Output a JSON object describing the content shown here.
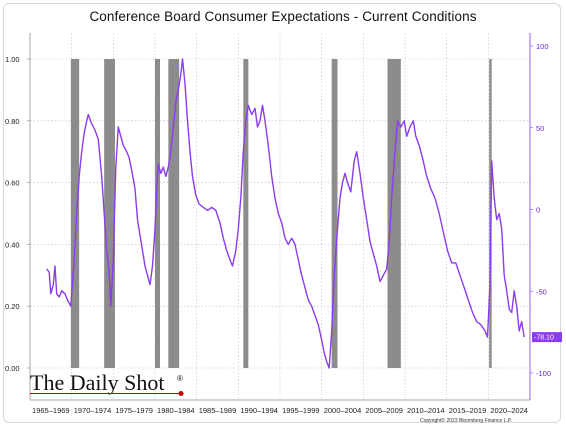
{
  "chart_data": {
    "type": "line",
    "title": "Conference Board Consumer Expectations - Current Conditions",
    "left_axis": {
      "ticks": [
        "0.00",
        "0.20",
        "0.40",
        "0.60",
        "0.80",
        "1.00"
      ],
      "values": [
        0,
        0.2,
        0.4,
        0.6,
        0.8,
        1.0
      ],
      "range": [
        0,
        1.0
      ]
    },
    "right_axis": {
      "ticks": [
        "100",
        "50",
        "0",
        "-50",
        "-100"
      ],
      "values": [
        100,
        50,
        0,
        -50,
        -100
      ],
      "range": [
        -100,
        100
      ]
    },
    "x_ticks": [
      "1965–1969",
      "1970–1974",
      "1975–1979",
      "1980–1984",
      "1985–1989",
      "1990–1994",
      "1995–1999",
      "2000–2004",
      "2005–2009",
      "2010–2014",
      "2015–2019",
      "2020–2024"
    ],
    "x_range": [
      1965,
      2025
    ],
    "last_value_label": "-78.10",
    "recessions": [
      [
        1969.9,
        1970.9
      ],
      [
        1973.9,
        1975.2
      ],
      [
        1980.0,
        1980.6
      ],
      [
        1981.6,
        1982.9
      ],
      [
        1990.6,
        1991.2
      ],
      [
        2001.2,
        2001.9
      ],
      [
        2007.9,
        2009.5
      ],
      [
        2020.1,
        2020.4
      ]
    ],
    "series": [
      {
        "color": "#8a3cf0",
        "points": [
          [
            1967.0,
            0.32
          ],
          [
            1967.3,
            0.31
          ],
          [
            1967.5,
            0.24
          ],
          [
            1967.8,
            0.27
          ],
          [
            1968.0,
            0.33
          ],
          [
            1968.2,
            0.24
          ],
          [
            1968.5,
            0.23
          ],
          [
            1968.8,
            0.25
          ],
          [
            1969.2,
            0.24
          ],
          [
            1969.5,
            0.22
          ],
          [
            1969.9,
            0.2
          ],
          [
            1970.3,
            0.35
          ],
          [
            1970.6,
            0.5
          ],
          [
            1970.9,
            0.62
          ],
          [
            1971.2,
            0.7
          ],
          [
            1971.5,
            0.76
          ],
          [
            1971.8,
            0.8
          ],
          [
            1972.0,
            0.82
          ],
          [
            1972.4,
            0.79
          ],
          [
            1972.8,
            0.77
          ],
          [
            1973.2,
            0.74
          ],
          [
            1973.6,
            0.62
          ],
          [
            1973.9,
            0.5
          ],
          [
            1974.2,
            0.38
          ],
          [
            1974.5,
            0.31
          ],
          [
            1974.7,
            0.2
          ],
          [
            1975.0,
            0.35
          ],
          [
            1975.3,
            0.65
          ],
          [
            1975.6,
            0.78
          ],
          [
            1975.9,
            0.75
          ],
          [
            1976.2,
            0.72
          ],
          [
            1976.6,
            0.7
          ],
          [
            1976.9,
            0.68
          ],
          [
            1977.2,
            0.64
          ],
          [
            1977.6,
            0.58
          ],
          [
            1977.9,
            0.48
          ],
          [
            1978.2,
            0.43
          ],
          [
            1978.5,
            0.38
          ],
          [
            1978.8,
            0.33
          ],
          [
            1979.1,
            0.3
          ],
          [
            1979.4,
            0.27
          ],
          [
            1979.7,
            0.33
          ],
          [
            1980.0,
            0.45
          ],
          [
            1980.2,
            0.58
          ],
          [
            1980.4,
            0.66
          ],
          [
            1980.7,
            0.63
          ],
          [
            1981.0,
            0.65
          ],
          [
            1981.3,
            0.62
          ],
          [
            1981.6,
            0.65
          ],
          [
            1981.9,
            0.7
          ],
          [
            1982.2,
            0.78
          ],
          [
            1982.5,
            0.86
          ],
          [
            1982.8,
            0.9
          ],
          [
            1983.1,
            0.95
          ],
          [
            1983.3,
            1.0
          ],
          [
            1983.6,
            0.92
          ],
          [
            1983.9,
            0.8
          ],
          [
            1984.2,
            0.7
          ],
          [
            1984.5,
            0.62
          ],
          [
            1984.9,
            0.56
          ],
          [
            1985.3,
            0.53
          ],
          [
            1985.8,
            0.52
          ],
          [
            1986.3,
            0.51
          ],
          [
            1986.8,
            0.52
          ],
          [
            1987.3,
            0.51
          ],
          [
            1987.8,
            0.47
          ],
          [
            1988.2,
            0.42
          ],
          [
            1988.6,
            0.38
          ],
          [
            1989.0,
            0.35
          ],
          [
            1989.3,
            0.33
          ],
          [
            1989.7,
            0.38
          ],
          [
            1990.0,
            0.45
          ],
          [
            1990.3,
            0.55
          ],
          [
            1990.6,
            0.7
          ],
          [
            1990.9,
            0.8
          ],
          [
            1991.2,
            0.85
          ],
          [
            1991.6,
            0.82
          ],
          [
            1992.0,
            0.84
          ],
          [
            1992.3,
            0.78
          ],
          [
            1992.6,
            0.8
          ],
          [
            1992.9,
            0.85
          ],
          [
            1993.2,
            0.8
          ],
          [
            1993.6,
            0.72
          ],
          [
            1994.0,
            0.62
          ],
          [
            1994.4,
            0.55
          ],
          [
            1994.8,
            0.5
          ],
          [
            1995.2,
            0.47
          ],
          [
            1995.6,
            0.42
          ],
          [
            1996.0,
            0.4
          ],
          [
            1996.4,
            0.42
          ],
          [
            1996.8,
            0.4
          ],
          [
            1997.2,
            0.35
          ],
          [
            1997.6,
            0.3
          ],
          [
            1998.0,
            0.26
          ],
          [
            1998.4,
            0.22
          ],
          [
            1998.8,
            0.2
          ],
          [
            1999.2,
            0.17
          ],
          [
            1999.6,
            0.14
          ],
          [
            2000.0,
            0.09
          ],
          [
            2000.3,
            0.05
          ],
          [
            2000.6,
            0.02
          ],
          [
            2000.9,
            0.0
          ],
          [
            2001.2,
            0.12
          ],
          [
            2001.5,
            0.3
          ],
          [
            2001.9,
            0.45
          ],
          [
            2002.2,
            0.55
          ],
          [
            2002.5,
            0.6
          ],
          [
            2002.8,
            0.63
          ],
          [
            2003.1,
            0.6
          ],
          [
            2003.5,
            0.57
          ],
          [
            2003.9,
            0.67
          ],
          [
            2004.2,
            0.7
          ],
          [
            2004.6,
            0.63
          ],
          [
            2005.0,
            0.55
          ],
          [
            2005.4,
            0.48
          ],
          [
            2005.8,
            0.41
          ],
          [
            2006.2,
            0.37
          ],
          [
            2006.6,
            0.33
          ],
          [
            2007.0,
            0.28
          ],
          [
            2007.4,
            0.3
          ],
          [
            2007.8,
            0.32
          ],
          [
            2008.1,
            0.41
          ],
          [
            2008.4,
            0.55
          ],
          [
            2008.8,
            0.7
          ],
          [
            2009.1,
            0.8
          ],
          [
            2009.5,
            0.78
          ],
          [
            2009.9,
            0.8
          ],
          [
            2010.2,
            0.75
          ],
          [
            2010.6,
            0.78
          ],
          [
            2011.0,
            0.8
          ],
          [
            2011.3,
            0.75
          ],
          [
            2011.7,
            0.72
          ],
          [
            2012.1,
            0.68
          ],
          [
            2012.6,
            0.62
          ],
          [
            2013.1,
            0.58
          ],
          [
            2013.6,
            0.55
          ],
          [
            2014.1,
            0.5
          ],
          [
            2014.6,
            0.44
          ],
          [
            2015.1,
            0.38
          ],
          [
            2015.6,
            0.34
          ],
          [
            2016.1,
            0.34
          ],
          [
            2016.6,
            0.3
          ],
          [
            2017.1,
            0.26
          ],
          [
            2017.6,
            0.22
          ],
          [
            2018.1,
            0.18
          ],
          [
            2018.6,
            0.15
          ],
          [
            2019.1,
            0.14
          ],
          [
            2019.6,
            0.12
          ],
          [
            2019.9,
            0.1
          ],
          [
            2020.2,
            0.27
          ],
          [
            2020.4,
            0.67
          ],
          [
            2020.7,
            0.55
          ],
          [
            2021.0,
            0.48
          ],
          [
            2021.3,
            0.5
          ],
          [
            2021.6,
            0.45
          ],
          [
            2021.9,
            0.3
          ],
          [
            2022.2,
            0.25
          ],
          [
            2022.5,
            0.19
          ],
          [
            2022.8,
            0.18
          ],
          [
            2023.1,
            0.25
          ],
          [
            2023.4,
            0.2
          ],
          [
            2023.7,
            0.12
          ],
          [
            2024.0,
            0.15
          ],
          [
            2024.3,
            0.1
          ]
        ]
      }
    ]
  },
  "watermark": {
    "brand": "The Daily Shot",
    "mark": "®"
  },
  "copyright": "Copyright© 2023 Bloomberg Finance L.P."
}
